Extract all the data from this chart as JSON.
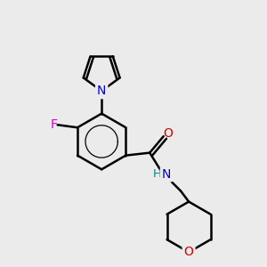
{
  "background_color": "#ebebeb",
  "bond_color": "#000000",
  "bond_width": 1.8,
  "atom_colors": {
    "N": "#0000cc",
    "O": "#cc0000",
    "F": "#cc00cc",
    "NH_H": "#008888",
    "NH_N": "#0000cc",
    "C": "#000000"
  },
  "font_size": 10,
  "fig_width": 3.0,
  "fig_height": 3.0,
  "dpi": 100
}
